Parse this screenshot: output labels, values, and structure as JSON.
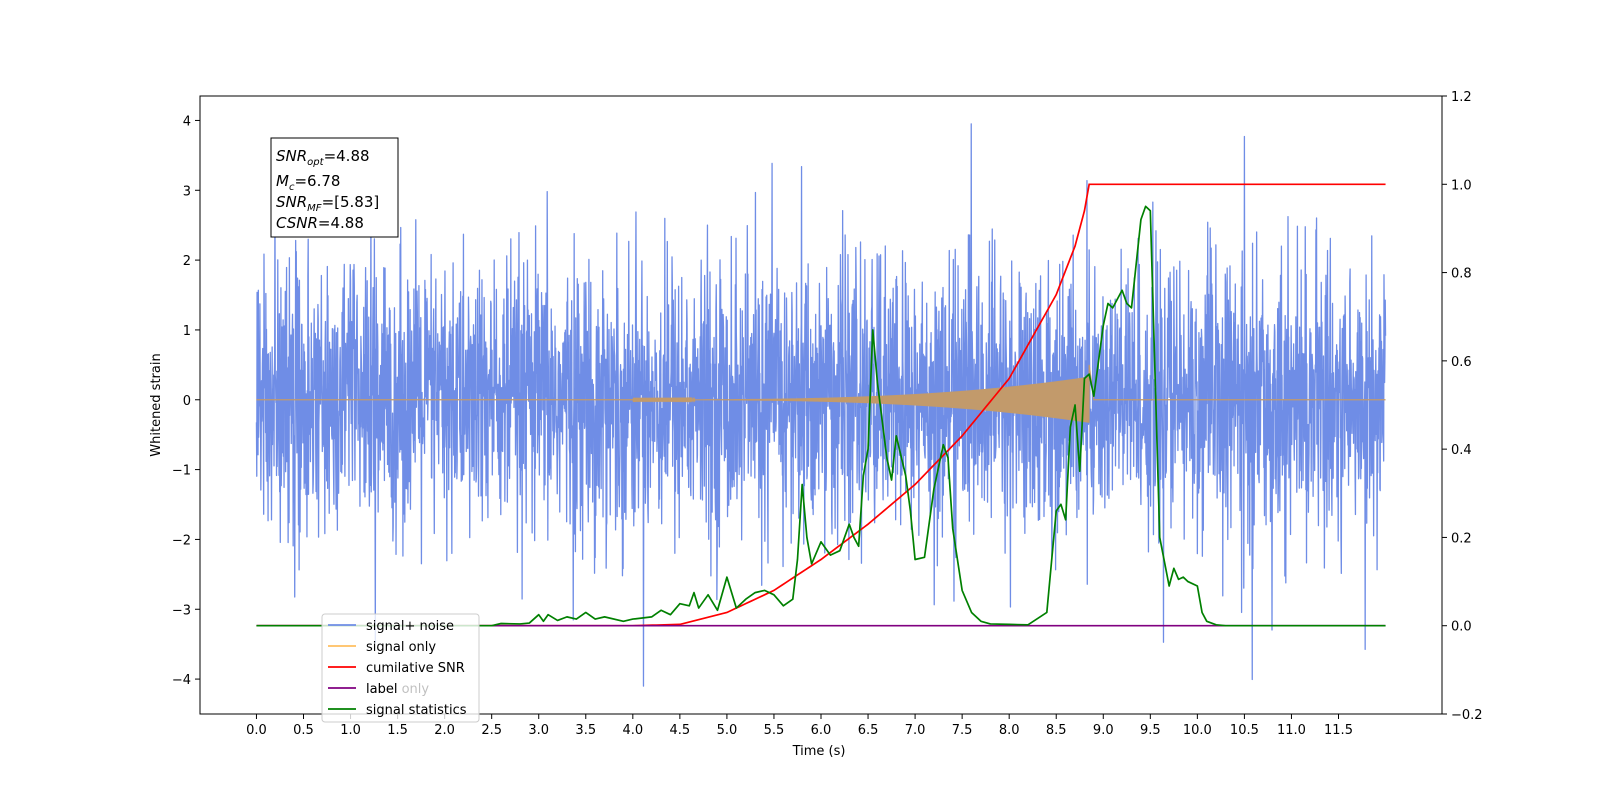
{
  "chart_data": {
    "type": "line",
    "xlabel": "Time (s)",
    "ylabel": "Whitened strain",
    "xlim": [
      -0.6,
      12.6
    ],
    "ylim": [
      -4.5,
      4.35
    ],
    "y2lim": [
      -0.2,
      1.2
    ],
    "xticks": [
      0.0,
      0.5,
      1.0,
      1.5,
      2.0,
      2.5,
      3.0,
      3.5,
      4.0,
      4.5,
      5.0,
      5.5,
      6.0,
      6.5,
      7.0,
      7.5,
      8.0,
      8.5,
      9.0,
      9.5,
      10.0,
      10.5,
      11.0,
      11.5
    ],
    "xtick_labels": [
      "0.0",
      "0.5",
      "1.0",
      "1.5",
      "2.0",
      "2.5",
      "3.0",
      "3.5",
      "4.0",
      "4.5",
      "5.0",
      "5.5",
      "6.0",
      "6.5",
      "7.0",
      "7.5",
      "8.0",
      "8.5",
      "9.0",
      "9.5",
      "10.0",
      "10.5",
      "11.0",
      "11.5"
    ],
    "yticks": [
      -4,
      -3,
      -2,
      -1,
      0,
      1,
      2,
      3,
      4
    ],
    "ytick_labels": [
      "−4",
      "−3",
      "−2",
      "−1",
      "0",
      "1",
      "2",
      "3",
      "4"
    ],
    "y2ticks": [
      -0.2,
      0.0,
      0.2,
      0.4,
      0.6,
      0.8,
      1.0,
      1.2
    ],
    "y2tick_labels": [
      "−0.2",
      "0.0",
      "0.2",
      "0.4",
      "0.6",
      "0.8",
      "1.0",
      "1.2"
    ],
    "grid": false,
    "legend_position": "lower-left",
    "annotation": {
      "lines": [
        {
          "main": "SNR",
          "sub": "opt",
          "rest": "=4.88"
        },
        {
          "main": "M",
          "sub": "c",
          "rest": "=6.78"
        },
        {
          "main": "SNR",
          "sub": "MF",
          "rest": "=[5.83]"
        },
        {
          "main": "CSNR",
          "sub": "",
          "rest": "=4.88"
        }
      ]
    },
    "series": [
      {
        "name": "signal+ noise",
        "axis": "left",
        "color": "#6f8de6",
        "description_samples": "dense noise, amplitude roughly within [-2.5, 2.5] with spikes to about -4.1 and 3.95",
        "x_range": [
          0.0,
          12.0
        ]
      },
      {
        "name": "signal only",
        "axis": "left",
        "color": "#c29a6b",
        "chirp": {
          "t_start": 4.0,
          "t_merge": 8.85,
          "peak_amplitude": 0.5
        }
      },
      {
        "name": "cumilative SNR",
        "axis": "right",
        "color": "#ff0000",
        "x": [
          0.0,
          4.0,
          4.5,
          5.0,
          5.5,
          6.0,
          6.5,
          7.0,
          7.5,
          8.0,
          8.5,
          8.7,
          8.8,
          8.85,
          12.0
        ],
        "y": [
          0.0,
          0.0,
          0.003,
          0.03,
          0.08,
          0.15,
          0.23,
          0.32,
          0.43,
          0.56,
          0.75,
          0.86,
          0.94,
          1.0,
          1.0
        ]
      },
      {
        "name": "label",
        "axis": "right",
        "color": "#800080",
        "x": [
          0.0,
          12.0
        ],
        "y": [
          0.0,
          0.0
        ]
      },
      {
        "name": "label only",
        "axis": "right",
        "color": "#800080",
        "x": [],
        "y": []
      },
      {
        "name": "signal statistics",
        "axis": "right",
        "color": "#008000",
        "x": [
          0.0,
          2.5,
          2.6,
          2.8,
          2.9,
          3.0,
          3.05,
          3.1,
          3.2,
          3.3,
          3.4,
          3.5,
          3.6,
          3.7,
          3.9,
          4.0,
          4.2,
          4.3,
          4.4,
          4.5,
          4.6,
          4.65,
          4.7,
          4.8,
          4.9,
          5.0,
          5.1,
          5.2,
          5.3,
          5.4,
          5.5,
          5.6,
          5.7,
          5.75,
          5.8,
          5.85,
          5.9,
          6.0,
          6.1,
          6.2,
          6.3,
          6.35,
          6.4,
          6.45,
          6.5,
          6.55,
          6.6,
          6.7,
          6.75,
          6.8,
          6.9,
          6.95,
          7.0,
          7.1,
          7.2,
          7.3,
          7.35,
          7.4,
          7.5,
          7.6,
          7.7,
          7.8,
          8.0,
          8.2,
          8.4,
          8.5,
          8.55,
          8.6,
          8.65,
          8.7,
          8.75,
          8.8,
          8.85,
          8.9,
          9.0,
          9.05,
          9.1,
          9.2,
          9.25,
          9.3,
          9.4,
          9.45,
          9.5,
          9.6,
          9.7,
          9.75,
          9.8,
          9.85,
          9.9,
          10.0,
          10.05,
          10.1,
          10.2,
          10.3,
          10.5,
          12.0
        ],
        "y": [
          0.0,
          0.0,
          0.005,
          0.004,
          0.006,
          0.025,
          0.01,
          0.025,
          0.012,
          0.02,
          0.015,
          0.03,
          0.015,
          0.02,
          0.01,
          0.015,
          0.02,
          0.035,
          0.025,
          0.05,
          0.045,
          0.075,
          0.04,
          0.07,
          0.035,
          0.11,
          0.04,
          0.06,
          0.075,
          0.08,
          0.07,
          0.045,
          0.06,
          0.15,
          0.32,
          0.2,
          0.14,
          0.19,
          0.16,
          0.17,
          0.23,
          0.2,
          0.18,
          0.34,
          0.4,
          0.67,
          0.55,
          0.38,
          0.33,
          0.43,
          0.34,
          0.26,
          0.15,
          0.155,
          0.31,
          0.41,
          0.38,
          0.22,
          0.08,
          0.03,
          0.01,
          0.004,
          0.003,
          0.002,
          0.03,
          0.26,
          0.275,
          0.24,
          0.45,
          0.5,
          0.35,
          0.56,
          0.57,
          0.52,
          0.68,
          0.73,
          0.72,
          0.76,
          0.73,
          0.72,
          0.92,
          0.95,
          0.94,
          0.2,
          0.09,
          0.13,
          0.105,
          0.11,
          0.1,
          0.09,
          0.03,
          0.01,
          0.002,
          0.0,
          0.0,
          0.0
        ]
      }
    ]
  }
}
